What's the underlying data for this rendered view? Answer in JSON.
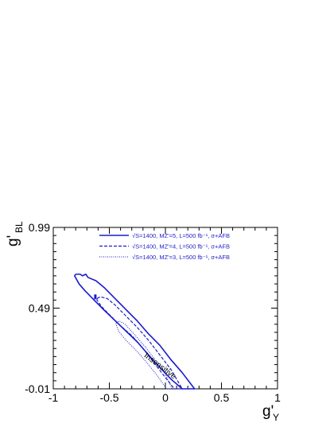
{
  "chart_data": {
    "type": "line",
    "title": "",
    "xlabel": "g'",
    "xlabel_sub": "Y",
    "ylabel": "g'",
    "ylabel_sub": "BL",
    "xlim": [
      -1,
      1
    ],
    "ylim": [
      -0.01,
      0.99
    ],
    "x_ticks": [
      "-1",
      "-0.5",
      "0",
      "0.5",
      "1"
    ],
    "x_tick_values": [
      -1,
      -0.5,
      0,
      0.5,
      1
    ],
    "y_ticks": [
      "-0.01",
      "0.49",
      "0.99"
    ],
    "y_tick_values": [
      -0.01,
      0.49,
      0.99
    ],
    "grid": false,
    "legend_position": "top",
    "colors": {
      "line": "#1a1acc",
      "text": "#2222cc",
      "axis": "#000000"
    },
    "series": [
      {
        "name": "√S=1400, MZ'=5, L=500 fb⁻¹, σ+AFB",
        "style": "solid",
        "values": [
          [
            -0.8,
            0.7
          ],
          [
            -0.76,
            0.7
          ],
          [
            -0.74,
            0.69
          ],
          [
            -0.71,
            0.7
          ],
          [
            -0.69,
            0.68
          ],
          [
            -0.62,
            0.66
          ],
          [
            -0.55,
            0.62
          ],
          [
            -0.45,
            0.55
          ],
          [
            -0.35,
            0.48
          ],
          [
            -0.25,
            0.41
          ],
          [
            -0.15,
            0.33
          ],
          [
            -0.05,
            0.26
          ],
          [
            0.05,
            0.17
          ],
          [
            0.15,
            0.09
          ],
          [
            0.26,
            -0.01
          ],
          [
            0.15,
            -0.01
          ],
          [
            0.05,
            0.05
          ],
          [
            -0.1,
            0.16
          ],
          [
            -0.25,
            0.28
          ],
          [
            -0.4,
            0.38
          ],
          [
            -0.55,
            0.48
          ],
          [
            -0.65,
            0.55
          ],
          [
            -0.72,
            0.6
          ],
          [
            -0.77,
            0.64
          ],
          [
            -0.81,
            0.69
          ],
          [
            -0.8,
            0.7
          ]
        ]
      },
      {
        "name": "√S=1400, MZ'=4, L=500 fb⁻¹, σ+AFB",
        "style": "dashed",
        "values": [
          [
            -0.61,
            0.55
          ],
          [
            -0.58,
            0.56
          ],
          [
            -0.52,
            0.55
          ],
          [
            -0.45,
            0.51
          ],
          [
            -0.35,
            0.44
          ],
          [
            -0.25,
            0.37
          ],
          [
            -0.15,
            0.29
          ],
          [
            -0.05,
            0.2
          ],
          [
            0.05,
            0.11
          ],
          [
            0.15,
            -0.01
          ],
          [
            0.08,
            -0.01
          ],
          [
            0.0,
            0.06
          ],
          [
            -0.1,
            0.15
          ],
          [
            -0.2,
            0.24
          ],
          [
            -0.3,
            0.32
          ],
          [
            -0.4,
            0.38
          ],
          [
            -0.5,
            0.45
          ],
          [
            -0.57,
            0.5
          ],
          [
            -0.61,
            0.54
          ],
          [
            -0.61,
            0.55
          ]
        ]
      },
      {
        "name": "√S=1400, MZ'=3, L=500 fb⁻¹, σ+AFB",
        "style": "dotted",
        "values": [
          [
            -0.44,
            0.4
          ],
          [
            -0.41,
            0.41
          ],
          [
            -0.36,
            0.39
          ],
          [
            -0.28,
            0.33
          ],
          [
            -0.18,
            0.25
          ],
          [
            -0.08,
            0.16
          ],
          [
            0.0,
            0.08
          ],
          [
            0.06,
            -0.01
          ],
          [
            0.01,
            -0.01
          ],
          [
            -0.06,
            0.06
          ],
          [
            -0.15,
            0.14
          ],
          [
            -0.25,
            0.22
          ],
          [
            -0.35,
            0.29
          ],
          [
            -0.42,
            0.35
          ],
          [
            -0.44,
            0.39
          ],
          [
            -0.44,
            0.4
          ]
        ]
      }
    ],
    "annotations": [
      {
        "text": "Insensitive",
        "x": -0.06,
        "y": 0.12,
        "rotation_deg": 37
      }
    ],
    "extra_marks": [
      {
        "x": -0.625,
        "y": 0.56
      }
    ]
  }
}
